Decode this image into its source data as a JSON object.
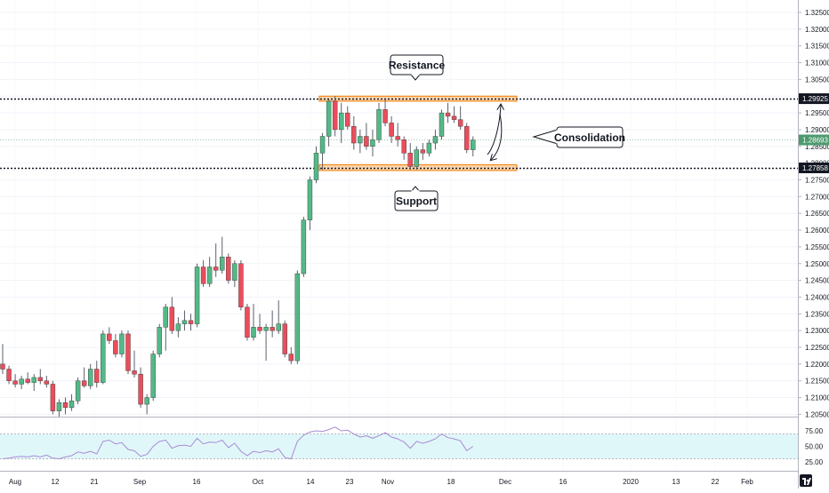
{
  "chart_data": {
    "type": "candlestick",
    "title": "",
    "y_axis": {
      "range": [
        1.203,
        1.325
      ],
      "ticks": [
        "1.32500",
        "1.32000",
        "1.31500",
        "1.31000",
        "1.30500",
        "1.30000",
        "1.29500",
        "1.29000",
        "1.28500",
        "1.28000",
        "1.27500",
        "1.27000",
        "1.26500",
        "1.26000",
        "1.25500",
        "1.25000",
        "1.24500",
        "1.24000",
        "1.23500",
        "1.23000",
        "1.22500",
        "1.22000",
        "1.21500",
        "1.21000",
        "1.20500"
      ],
      "price_labels": [
        {
          "text": "1.29925",
          "value": 1.29925,
          "color": "#131722"
        },
        {
          "text": "1.28693",
          "value": 1.28693,
          "color": "#4c9a6d"
        },
        {
          "text": "1.27858",
          "value": 1.27858,
          "color": "#131722"
        }
      ]
    },
    "x_axis": {
      "labels": [
        "Aug",
        "12",
        "21",
        "Sep",
        "16",
        "Oct",
        "14",
        "23",
        "Nov",
        "18",
        "Dec",
        "16",
        "2020",
        "13",
        "22",
        "Feb"
      ]
    },
    "horizontal_lines": [
      {
        "name": "resistance-line",
        "value": 1.29925
      },
      {
        "name": "support-line",
        "value": 1.27858
      }
    ],
    "zones": [
      {
        "name": "resistance-zone",
        "from": 1.2985,
        "to": 1.3
      },
      {
        "name": "support-zone",
        "from": 1.2778,
        "to": 1.2795
      }
    ],
    "annotations": {
      "resistance": "Resistance",
      "support": "Support",
      "consolidation": "Consolidation"
    },
    "candles": [
      [
        1.22,
        1.226,
        1.217,
        1.2185
      ],
      [
        1.2185,
        1.2195,
        1.214,
        1.215
      ],
      [
        1.215,
        1.217,
        1.213,
        1.214
      ],
      [
        1.214,
        1.2165,
        1.2125,
        1.2155
      ],
      [
        1.2155,
        1.2175,
        1.214,
        1.2145
      ],
      [
        1.2145,
        1.217,
        1.212,
        1.216
      ],
      [
        1.216,
        1.2185,
        1.214,
        1.215
      ],
      [
        1.215,
        1.2165,
        1.213,
        1.214
      ],
      [
        1.214,
        1.215,
        1.205,
        1.206
      ],
      [
        1.206,
        1.2095,
        1.204,
        1.2085
      ],
      [
        1.2085,
        1.21,
        1.205,
        1.207
      ],
      [
        1.207,
        1.211,
        1.206,
        1.209
      ],
      [
        1.209,
        1.216,
        1.208,
        1.215
      ],
      [
        1.215,
        1.219,
        1.213,
        1.2135
      ],
      [
        1.2135,
        1.22,
        1.2125,
        1.2185
      ],
      [
        1.2185,
        1.221,
        1.213,
        1.2145
      ],
      [
        1.2145,
        1.23,
        1.214,
        1.229
      ],
      [
        1.229,
        1.231,
        1.226,
        1.227
      ],
      [
        1.227,
        1.229,
        1.222,
        1.223
      ],
      [
        1.223,
        1.23,
        1.222,
        1.229
      ],
      [
        1.229,
        1.23,
        1.217,
        1.218
      ],
      [
        1.218,
        1.224,
        1.216,
        1.217
      ],
      [
        1.217,
        1.219,
        1.207,
        1.208
      ],
      [
        1.208,
        1.211,
        1.205,
        1.21
      ],
      [
        1.21,
        1.224,
        1.209,
        1.223
      ],
      [
        1.223,
        1.232,
        1.222,
        1.231
      ],
      [
        1.231,
        1.238,
        1.224,
        1.237
      ],
      [
        1.237,
        1.24,
        1.229,
        1.23
      ],
      [
        1.23,
        1.234,
        1.228,
        1.232
      ],
      [
        1.232,
        1.236,
        1.23,
        1.233
      ],
      [
        1.233,
        1.235,
        1.23,
        1.232
      ],
      [
        1.232,
        1.25,
        1.231,
        1.249
      ],
      [
        1.249,
        1.251,
        1.243,
        1.244
      ],
      [
        1.244,
        1.252,
        1.243,
        1.249
      ],
      [
        1.249,
        1.256,
        1.246,
        1.248
      ],
      [
        1.248,
        1.258,
        1.247,
        1.252
      ],
      [
        1.252,
        1.253,
        1.244,
        1.245
      ],
      [
        1.245,
        1.251,
        1.243,
        1.25
      ],
      [
        1.25,
        1.251,
        1.236,
        1.237
      ],
      [
        1.237,
        1.238,
        1.227,
        1.228
      ],
      [
        1.228,
        1.238,
        1.227,
        1.231
      ],
      [
        1.231,
        1.235,
        1.229,
        1.23
      ],
      [
        1.23,
        1.232,
        1.221,
        1.231
      ],
      [
        1.231,
        1.236,
        1.228,
        1.23
      ],
      [
        1.23,
        1.239,
        1.229,
        1.232
      ],
      [
        1.232,
        1.233,
        1.222,
        1.223
      ],
      [
        1.223,
        1.225,
        1.22,
        1.221
      ],
      [
        1.221,
        1.248,
        1.22,
        1.247
      ],
      [
        1.247,
        1.264,
        1.246,
        1.263
      ],
      [
        1.263,
        1.276,
        1.26,
        1.275
      ],
      [
        1.275,
        1.285,
        1.274,
        1.283
      ],
      [
        1.283,
        1.289,
        1.278,
        1.288
      ],
      [
        1.288,
        1.299,
        1.285,
        1.2985
      ],
      [
        1.2985,
        1.3,
        1.288,
        1.29
      ],
      [
        1.29,
        1.298,
        1.286,
        1.295
      ],
      [
        1.295,
        1.297,
        1.29,
        1.291
      ],
      [
        1.291,
        1.294,
        1.284,
        1.286
      ],
      [
        1.286,
        1.29,
        1.283,
        1.288
      ],
      [
        1.288,
        1.292,
        1.284,
        1.285
      ],
      [
        1.285,
        1.29,
        1.282,
        1.287
      ],
      [
        1.287,
        1.298,
        1.286,
        1.296
      ],
      [
        1.296,
        1.299,
        1.291,
        1.292
      ],
      [
        1.292,
        1.294,
        1.286,
        1.288
      ],
      [
        1.288,
        1.292,
        1.285,
        1.287
      ],
      [
        1.287,
        1.288,
        1.281,
        1.283
      ],
      [
        1.283,
        1.286,
        1.278,
        1.279
      ],
      [
        1.279,
        1.285,
        1.278,
        1.284
      ],
      [
        1.284,
        1.286,
        1.281,
        1.283
      ],
      [
        1.283,
        1.287,
        1.282,
        1.286
      ],
      [
        1.286,
        1.29,
        1.284,
        1.288
      ],
      [
        1.288,
        1.296,
        1.287,
        1.295
      ],
      [
        1.295,
        1.298,
        1.292,
        1.294
      ],
      [
        1.294,
        1.297,
        1.292,
        1.293
      ],
      [
        1.293,
        1.297,
        1.29,
        1.291
      ],
      [
        1.291,
        1.292,
        1.283,
        1.284
      ],
      [
        1.284,
        1.288,
        1.282,
        1.2869
      ]
    ],
    "rsi": {
      "ticks": [
        "75.00",
        "50.00",
        "25.00"
      ],
      "band": [
        30,
        70
      ],
      "range": [
        15,
        85
      ],
      "values": [
        30,
        31,
        33,
        34,
        33,
        35,
        33,
        36,
        31,
        30,
        33,
        35,
        41,
        39,
        42,
        38,
        58,
        60,
        54,
        56,
        45,
        43,
        34,
        37,
        50,
        58,
        60,
        47,
        51,
        52,
        50,
        63,
        54,
        57,
        56,
        60,
        48,
        55,
        42,
        35,
        42,
        40,
        43,
        41,
        46,
        32,
        30,
        58,
        68,
        73,
        75,
        74,
        77,
        81,
        75,
        76,
        70,
        65,
        67,
        63,
        67,
        72,
        65,
        62,
        57,
        47,
        58,
        55,
        58,
        62,
        70,
        64,
        62,
        59,
        43,
        50
      ]
    },
    "colors": {
      "up": "#53b987",
      "down": "#eb4d5c",
      "rsi_line": "#a98bd3",
      "rsi_band": "#e0f7fa",
      "zone": "#f5b26b",
      "zone_border": "#f57c00"
    }
  }
}
